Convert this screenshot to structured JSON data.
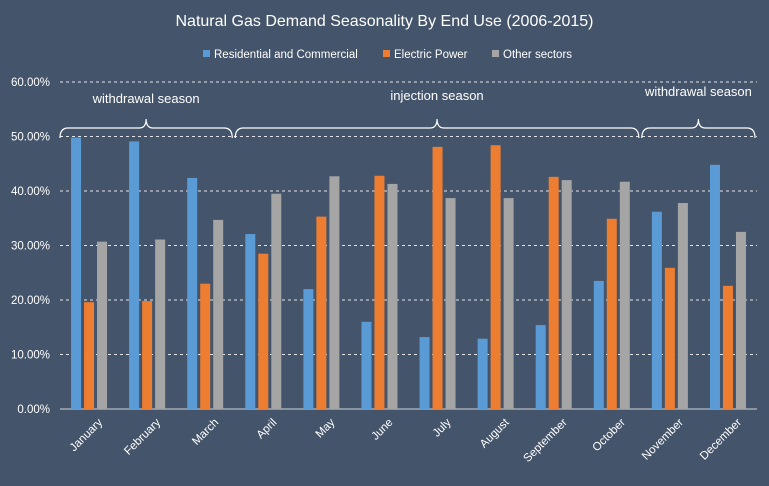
{
  "chart_data": {
    "type": "bar",
    "title": "Natural Gas Demand Seasonality By End Use (2006-2015)",
    "categories": [
      "January",
      "February",
      "March",
      "April",
      "May",
      "June",
      "July",
      "August",
      "September",
      "October",
      "November",
      "December"
    ],
    "series": [
      {
        "name": "Residential and Commercial",
        "color": "#5b9bd5",
        "values": [
          49.8,
          49.1,
          42.4,
          32.1,
          22.0,
          16.0,
          13.2,
          12.9,
          15.4,
          23.5,
          36.2,
          44.8
        ]
      },
      {
        "name": "Electric Power",
        "color": "#ed7d31",
        "values": [
          19.6,
          19.8,
          23.0,
          28.5,
          35.3,
          42.8,
          48.1,
          48.4,
          42.6,
          34.9,
          25.9,
          22.6
        ]
      },
      {
        "name": "Other sectors",
        "color": "#a5a5a5",
        "values": [
          30.7,
          31.1,
          34.7,
          39.5,
          42.7,
          41.3,
          38.7,
          38.7,
          42.0,
          41.7,
          37.8,
          32.5
        ]
      }
    ],
    "ylim": [
      0,
      60
    ],
    "yticks": [
      "0.00%",
      "10.00%",
      "20.00%",
      "30.00%",
      "40.00%",
      "50.00%",
      "60.00%"
    ],
    "grid": true,
    "legend_position": "top",
    "annotations": [
      {
        "label": "withdrawal season",
        "from": "January",
        "to": "March"
      },
      {
        "label": "injection season",
        "from": "April",
        "to": "October"
      },
      {
        "label": "withdrawal season",
        "from": "November",
        "to": "December"
      }
    ]
  }
}
